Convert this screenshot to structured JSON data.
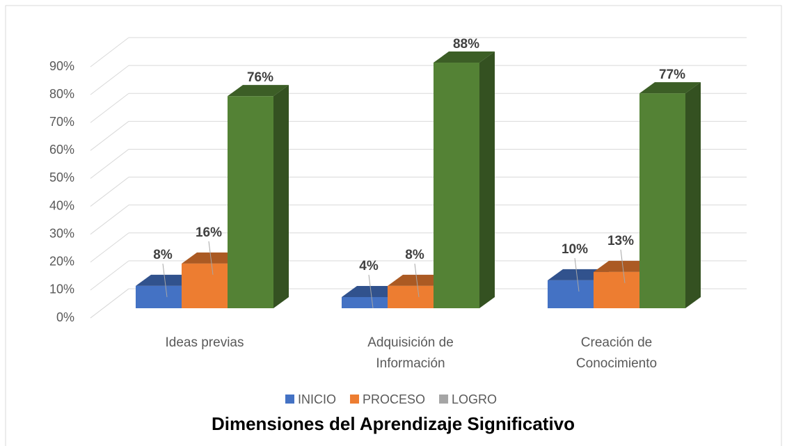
{
  "chart_data": {
    "type": "bar3d",
    "title": "Dimensiones del Aprendizaje Significativo",
    "categories": [
      [
        "Ideas previas"
      ],
      [
        "Adquisición de",
        "Información"
      ],
      [
        "Creación de",
        "Conocimiento"
      ]
    ],
    "series": [
      {
        "name": "INICIO",
        "color": "#4472c4",
        "legend_color": "#4472c4",
        "values": [
          8,
          4,
          10
        ],
        "value_labels": [
          "8%",
          "4%",
          "10%"
        ]
      },
      {
        "name": "PROCESO",
        "color": "#ed7d31",
        "legend_color": "#ed7d31",
        "values": [
          16,
          8,
          13
        ],
        "value_labels": [
          "16%",
          "8%",
          "13%"
        ]
      },
      {
        "name": "LOGRO",
        "color": "#548235",
        "legend_color": "#a5a5a5",
        "values": [
          76,
          88,
          77
        ],
        "value_labels": [
          "76%",
          "88%",
          "77%"
        ]
      }
    ],
    "ylim": [
      0,
      90
    ],
    "yticks": [
      {
        "value": 0,
        "label": "0%"
      },
      {
        "value": 10,
        "label": "10%"
      },
      {
        "value": 20,
        "label": "20%"
      },
      {
        "value": 30,
        "label": "30%"
      },
      {
        "value": 40,
        "label": "40%"
      },
      {
        "value": 50,
        "label": "50%"
      },
      {
        "value": 60,
        "label": "60%"
      },
      {
        "value": 70,
        "label": "70%"
      },
      {
        "value": 80,
        "label": "80%"
      },
      {
        "value": 90,
        "label": "90%"
      }
    ],
    "grid": true
  }
}
